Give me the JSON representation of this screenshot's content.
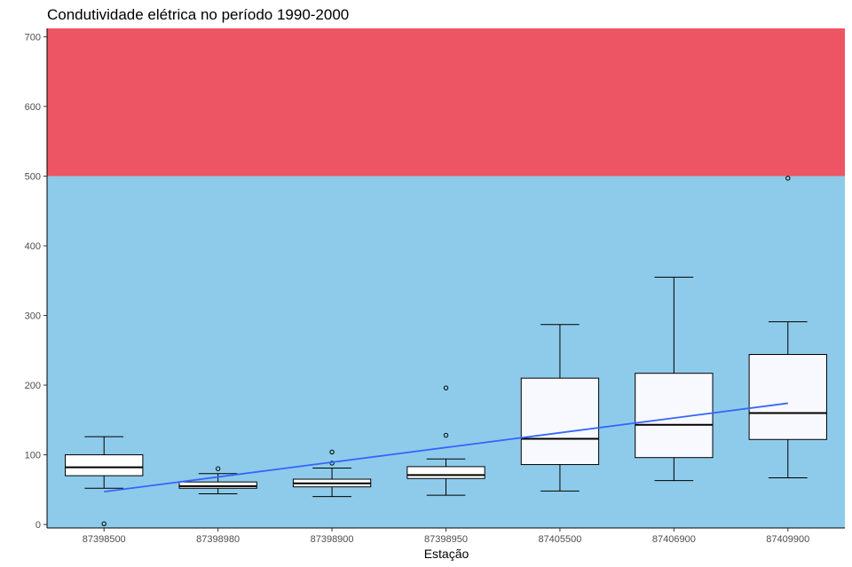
{
  "chart_data": {
    "type": "boxplot",
    "title": "Condutividade elétrica no período 1990-2000",
    "xlabel": "Estação",
    "ylabel": "",
    "ylim": [
      -5,
      712
    ],
    "yticks": [
      0,
      100,
      200,
      300,
      400,
      500,
      600,
      700
    ],
    "grid": false,
    "background_bands": [
      {
        "from": -5,
        "to": 500,
        "color": "#8ecbea"
      },
      {
        "from": 500,
        "to": 712,
        "color": "#ed5564"
      }
    ],
    "categories": [
      "87398500",
      "87398980",
      "87398900",
      "87398950",
      "87405500",
      "87406900",
      "87409900"
    ],
    "boxes": [
      {
        "category": "87398500",
        "whisker_low": 52,
        "q1": 70,
        "median": 82,
        "q3": 100,
        "whisker_high": 126,
        "outliers": [
          1
        ],
        "fill": "#ffffff"
      },
      {
        "category": "87398980",
        "whisker_low": 44,
        "q1": 52,
        "median": 55,
        "q3": 61,
        "whisker_high": 73,
        "outliers": [
          80
        ],
        "fill": "#ffffff"
      },
      {
        "category": "87398900",
        "whisker_low": 40,
        "q1": 54,
        "median": 59,
        "q3": 65,
        "whisker_high": 81,
        "outliers": [
          88,
          104
        ],
        "fill": "#ffffff"
      },
      {
        "category": "87398950",
        "whisker_low": 42,
        "q1": 66,
        "median": 71,
        "q3": 83,
        "whisker_high": 94,
        "outliers": [
          128,
          196
        ],
        "fill": "#ffffff"
      },
      {
        "category": "87405500",
        "whisker_low": 48,
        "q1": 86,
        "median": 123,
        "q3": 210,
        "whisker_high": 287,
        "outliers": [],
        "fill": "#f8f8ff"
      },
      {
        "category": "87406900",
        "whisker_low": 63,
        "q1": 96,
        "median": 143,
        "q3": 217,
        "whisker_high": 355,
        "outliers": [],
        "fill": "#f8f8ff"
      },
      {
        "category": "87409900",
        "whisker_low": 67,
        "q1": 122,
        "median": 160,
        "q3": 244,
        "whisker_high": 291,
        "outliers": [
          497
        ],
        "fill": "#f8f8ff"
      }
    ],
    "trend_line": {
      "color": "#3366ff",
      "start": {
        "category": "87398500",
        "y": 47
      },
      "end": {
        "category": "87409900",
        "y": 174
      }
    }
  }
}
